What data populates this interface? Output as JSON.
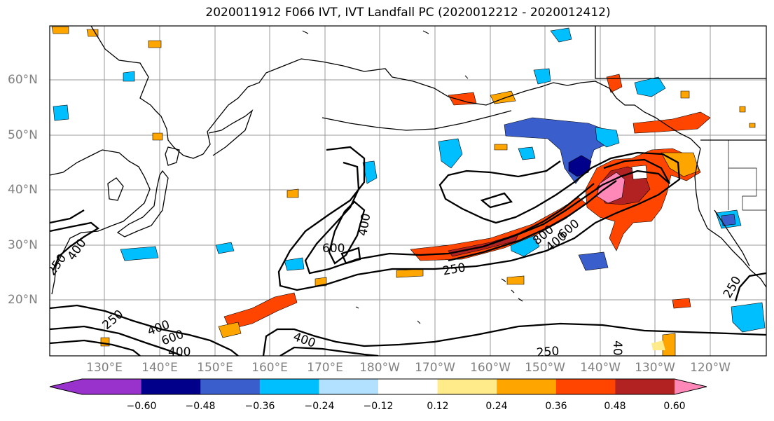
{
  "title": "2020011912 F066 IVT, IVT Landfall PC (2020012212 - 2020012412)",
  "lat_labels": [
    "60°N",
    "50°N",
    "40°N",
    "30°N",
    "20°N"
  ],
  "lon_labels": [
    "130°E",
    "140°E",
    "150°E",
    "160°E",
    "170°E",
    "180°W",
    "170°W",
    "160°W",
    "150°W",
    "140°W",
    "130°W",
    "120°W"
  ],
  "contour_labels": {
    "l400_a": "400",
    "l600_a": "600",
    "l400_w": "400",
    "l250_w": "250",
    "l400_sw": "400",
    "l600_sw": "600",
    "l400_s": "400",
    "l250_sw": "250",
    "l800": "800",
    "l400_e": "400",
    "l600_e": "600",
    "l250_mid": "250",
    "l250_se": "250",
    "l250_e": "250",
    "l40_e": "40",
    "l400_s2": "400"
  },
  "colorbar": {
    "colors": [
      "#9932cc",
      "#00008b",
      "#3a5fcd",
      "#00bfff",
      "#b2e0ff",
      "#ffffff",
      "#ffeb8a",
      "#ffa500",
      "#ff4500",
      "#b22222",
      "#ff88b8"
    ],
    "tick_labels": [
      "−0.60",
      "−0.48",
      "−0.36",
      "−0.24",
      "−0.12",
      "0.12",
      "0.24",
      "0.36",
      "0.48",
      "0.60"
    ]
  }
}
